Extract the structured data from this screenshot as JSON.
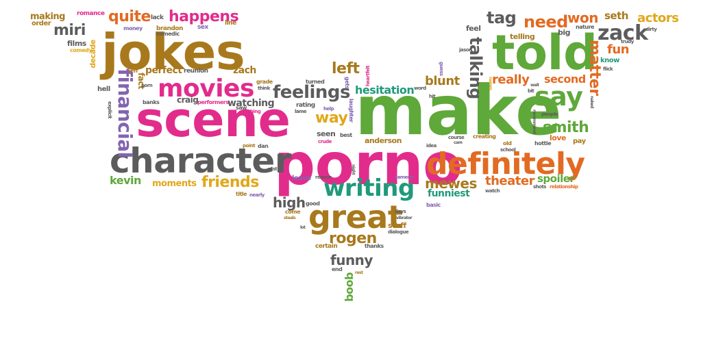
{
  "colors": {
    "pink": "#e22c8c",
    "green": "#5fa83a",
    "orange": "#e26a22",
    "olive": "#a8791c",
    "gray": "#5c5c5c",
    "purple": "#8364b0",
    "teal": "#1f9a7a",
    "yellow": "#e0a71a"
  },
  "words": [
    {
      "text": "make",
      "color": "green"
    },
    {
      "text": "porno",
      "color": "pink"
    },
    {
      "text": "scene",
      "color": "pink"
    },
    {
      "text": "jokes",
      "color": "olive"
    },
    {
      "text": "told",
      "color": "green"
    },
    {
      "text": "character",
      "color": "gray"
    },
    {
      "text": "definitely",
      "color": "orange"
    },
    {
      "text": "great",
      "color": "olive"
    },
    {
      "text": "writing",
      "color": "teal"
    },
    {
      "text": "movies",
      "color": "pink"
    },
    {
      "text": "say",
      "color": "green"
    },
    {
      "text": "feelings",
      "color": "gray"
    },
    {
      "text": "financial",
      "color": "purple"
    },
    {
      "text": "friends",
      "color": "yellow"
    },
    {
      "text": "zack",
      "color": "gray"
    },
    {
      "text": "need",
      "color": "orange"
    },
    {
      "text": "smith",
      "color": "green"
    },
    {
      "text": "left",
      "color": "olive"
    },
    {
      "text": "way",
      "color": "yellow"
    },
    {
      "text": "talking",
      "color": "gray"
    },
    {
      "text": "matter",
      "color": "orange"
    },
    {
      "text": "quite",
      "color": "orange"
    },
    {
      "text": "happens",
      "color": "pink"
    },
    {
      "text": "miri",
      "color": "gray"
    },
    {
      "text": "tag",
      "color": "gray"
    },
    {
      "text": "won",
      "color": "orange"
    },
    {
      "text": "rogen",
      "color": "olive"
    },
    {
      "text": "funny",
      "color": "gray"
    },
    {
      "text": "mewes",
      "color": "olive"
    },
    {
      "text": "theater",
      "color": "orange"
    },
    {
      "text": "high",
      "color": "gray"
    },
    {
      "text": "really",
      "color": "orange"
    },
    {
      "text": "blunt",
      "color": "olive"
    },
    {
      "text": "hesitation",
      "color": "teal"
    },
    {
      "text": "second",
      "color": "orange"
    },
    {
      "text": "actors",
      "color": "yellow"
    },
    {
      "text": "fun",
      "color": "orange"
    },
    {
      "text": "kevin",
      "color": "green"
    },
    {
      "text": "moments",
      "color": "yellow"
    },
    {
      "text": "spoiler",
      "color": "green"
    },
    {
      "text": "funniest",
      "color": "teal"
    },
    {
      "text": "watching",
      "color": "gray"
    },
    {
      "text": "zach",
      "color": "olive"
    },
    {
      "text": "perfect",
      "color": "olive"
    },
    {
      "text": "fact",
      "color": "olive"
    },
    {
      "text": "craig",
      "color": "gray"
    },
    {
      "text": "boob",
      "color": "green"
    },
    {
      "text": "seth",
      "color": "olive"
    },
    {
      "text": "making",
      "color": "olive"
    },
    {
      "text": "order",
      "color": "olive"
    },
    {
      "text": "romance",
      "color": "pink"
    },
    {
      "text": "lack",
      "color": "gray"
    },
    {
      "text": "brandon",
      "color": "olive"
    },
    {
      "text": "comedic",
      "color": "gray"
    },
    {
      "text": "sex",
      "color": "purple"
    },
    {
      "text": "line",
      "color": "olive"
    },
    {
      "text": "money",
      "color": "purple"
    },
    {
      "text": "films",
      "color": "gray"
    },
    {
      "text": "comedy",
      "color": "yellow"
    },
    {
      "text": "decade",
      "color": "yellow"
    },
    {
      "text": "jeff",
      "color": "olive"
    },
    {
      "text": "reunion",
      "color": "gray"
    },
    {
      "text": "hell",
      "color": "gray"
    },
    {
      "text": "porn",
      "color": "gray"
    },
    {
      "text": "banks",
      "color": "gray"
    },
    {
      "text": "performers",
      "color": "pink"
    },
    {
      "text": "grade",
      "color": "olive"
    },
    {
      "text": "think",
      "color": "gray"
    },
    {
      "text": "saw",
      "color": "gray"
    },
    {
      "text": "thing",
      "color": "pink"
    },
    {
      "text": "explicit",
      "color": "gray"
    },
    {
      "text": "turned",
      "color": "gray"
    },
    {
      "text": "gets",
      "color": "purple"
    },
    {
      "text": "heartfelt",
      "color": "pink"
    },
    {
      "text": "rating",
      "color": "gray"
    },
    {
      "text": "lame",
      "color": "gray"
    },
    {
      "text": "help",
      "color": "purple"
    },
    {
      "text": "laughter",
      "color": "purple"
    },
    {
      "text": "seen",
      "color": "gray"
    },
    {
      "text": "best",
      "color": "gray"
    },
    {
      "text": "crude",
      "color": "pink"
    },
    {
      "text": "anderson",
      "color": "olive"
    },
    {
      "text": "point",
      "color": "olive"
    },
    {
      "text": "dan",
      "color": "gray"
    },
    {
      "text": "cast",
      "color": "gray"
    },
    {
      "text": "leave",
      "color": "purple"
    },
    {
      "text": "reason",
      "color": "gray"
    },
    {
      "text": "cameos",
      "color": "purple"
    },
    {
      "text": "night",
      "color": "gray"
    },
    {
      "text": "title",
      "color": "olive"
    },
    {
      "text": "nearly",
      "color": "purple"
    },
    {
      "text": "good",
      "color": "gray"
    },
    {
      "text": "days",
      "color": "gray"
    },
    {
      "text": "vibrator",
      "color": "gray"
    },
    {
      "text": "stuff",
      "color": "olive"
    },
    {
      "text": "dialogue",
      "color": "gray"
    },
    {
      "text": "come",
      "color": "olive"
    },
    {
      "text": "steals",
      "color": "olive"
    },
    {
      "text": "lot",
      "color": "gray"
    },
    {
      "text": "thanks",
      "color": "gray"
    },
    {
      "text": "certain",
      "color": "olive"
    },
    {
      "text": "end",
      "color": "gray"
    },
    {
      "text": "rest",
      "color": "olive"
    },
    {
      "text": "basic",
      "color": "purple"
    },
    {
      "text": "idea",
      "color": "gray"
    },
    {
      "text": "course",
      "color": "gray"
    },
    {
      "text": "cam",
      "color": "gray"
    },
    {
      "text": "creating",
      "color": "olive"
    },
    {
      "text": "old",
      "color": "olive"
    },
    {
      "text": "school",
      "color": "gray"
    },
    {
      "text": "hottie",
      "color": "gray"
    },
    {
      "text": "love",
      "color": "orange"
    },
    {
      "text": "pay",
      "color": "olive"
    },
    {
      "text": "people",
      "color": "gray"
    },
    {
      "text": "recommend",
      "color": "gray"
    },
    {
      "text": "shots",
      "color": "gray"
    },
    {
      "text": "relationship",
      "color": "orange"
    },
    {
      "text": "watch",
      "color": "gray"
    },
    {
      "text": "guess",
      "color": "purple"
    },
    {
      "text": "jason",
      "color": "gray"
    },
    {
      "text": "feel",
      "color": "gray"
    },
    {
      "text": "telling",
      "color": "olive"
    },
    {
      "text": "big",
      "color": "gray"
    },
    {
      "text": "nature",
      "color": "gray"
    },
    {
      "text": "dirty",
      "color": "gray"
    },
    {
      "text": "trudy",
      "color": "gray"
    },
    {
      "text": "know",
      "color": "teal"
    },
    {
      "text": "flick",
      "color": "gray"
    },
    {
      "text": "wait",
      "color": "gray"
    },
    {
      "text": "bit",
      "color": "gray"
    },
    {
      "text": "word",
      "color": "gray"
    },
    {
      "text": "hit",
      "color": "gray"
    },
    {
      "text": "names",
      "color": "yellow"
    },
    {
      "text": "naked",
      "color": "gray"
    }
  ]
}
